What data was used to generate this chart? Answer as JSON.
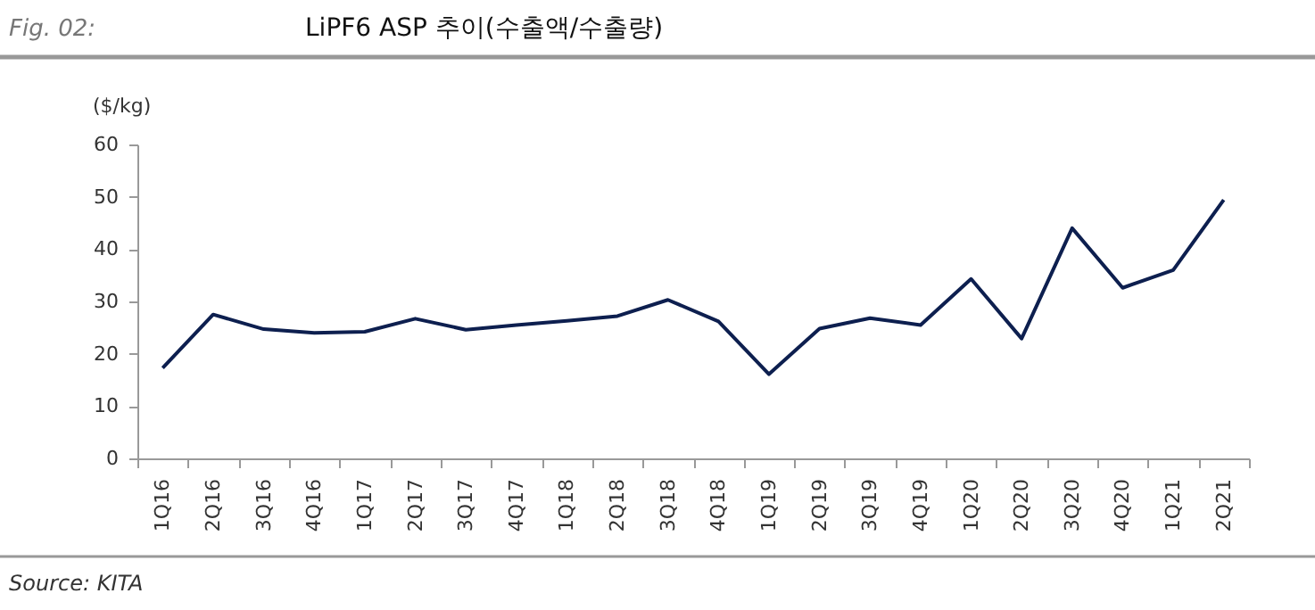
{
  "chart_data": {
    "type": "line",
    "title": "LiPF6 ASP 추이(수출액/수출량)",
    "ylabel": "($/kg)",
    "annotations": [
      "Fig. 02:",
      "Source: KITA"
    ],
    "categories": [
      "1Q16",
      "2Q16",
      "3Q16",
      "4Q16",
      "1Q17",
      "2Q17",
      "3Q17",
      "4Q17",
      "1Q18",
      "2Q18",
      "3Q18",
      "4Q18",
      "1Q19",
      "2Q19",
      "3Q19",
      "4Q19",
      "1Q20",
      "2Q20",
      "3Q20",
      "4Q20",
      "1Q21",
      "2Q21"
    ],
    "series": [
      {
        "color": "#0d1f4f",
        "values": [
          17.3,
          27.5,
          24.7,
          24.0,
          24.2,
          26.7,
          24.6,
          25.5,
          26.3,
          27.2,
          30.3,
          26.2,
          16.1,
          24.8,
          26.8,
          25.5,
          34.3,
          22.9,
          44.0,
          32.6,
          36.0,
          49.4
        ]
      }
    ],
    "ylim": [
      0,
      60
    ],
    "yticks": [
      0,
      10,
      20,
      30,
      40,
      50,
      60
    ],
    "grid": false,
    "legend": false,
    "marker": "none",
    "line_style": "solid"
  }
}
